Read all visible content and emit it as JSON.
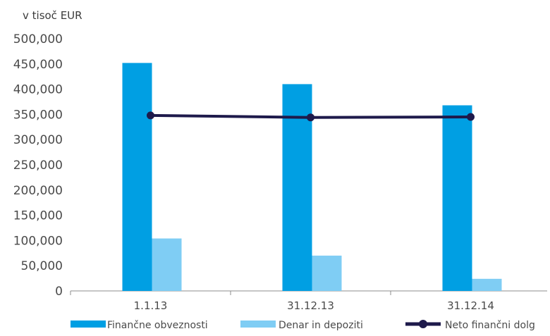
{
  "chart_data": {
    "type": "bar",
    "unit_label": "v tisoč EUR",
    "categories": [
      "1.1.13",
      "31.12.13",
      "31.12.14"
    ],
    "series": [
      {
        "name": "Finančne obveznosti",
        "type": "bar",
        "color": "#009fe3",
        "values": [
          452000,
          410000,
          368000
        ]
      },
      {
        "name": "Denar in depoziti",
        "type": "bar",
        "color": "#7fcdf4",
        "values": [
          104000,
          70000,
          24000
        ]
      },
      {
        "name": "Neto finančni dolg",
        "type": "line",
        "color": "#1e1a4b",
        "values": [
          348000,
          344000,
          345000
        ]
      }
    ],
    "yticks": [
      "0",
      "50,000",
      "100,000",
      "150,000",
      "200,000",
      "250,000",
      "300,000",
      "350,000",
      "400,000",
      "450,000",
      "500,000"
    ],
    "ylim": [
      0,
      500000
    ],
    "grid": false,
    "legend_position": "bottom"
  }
}
